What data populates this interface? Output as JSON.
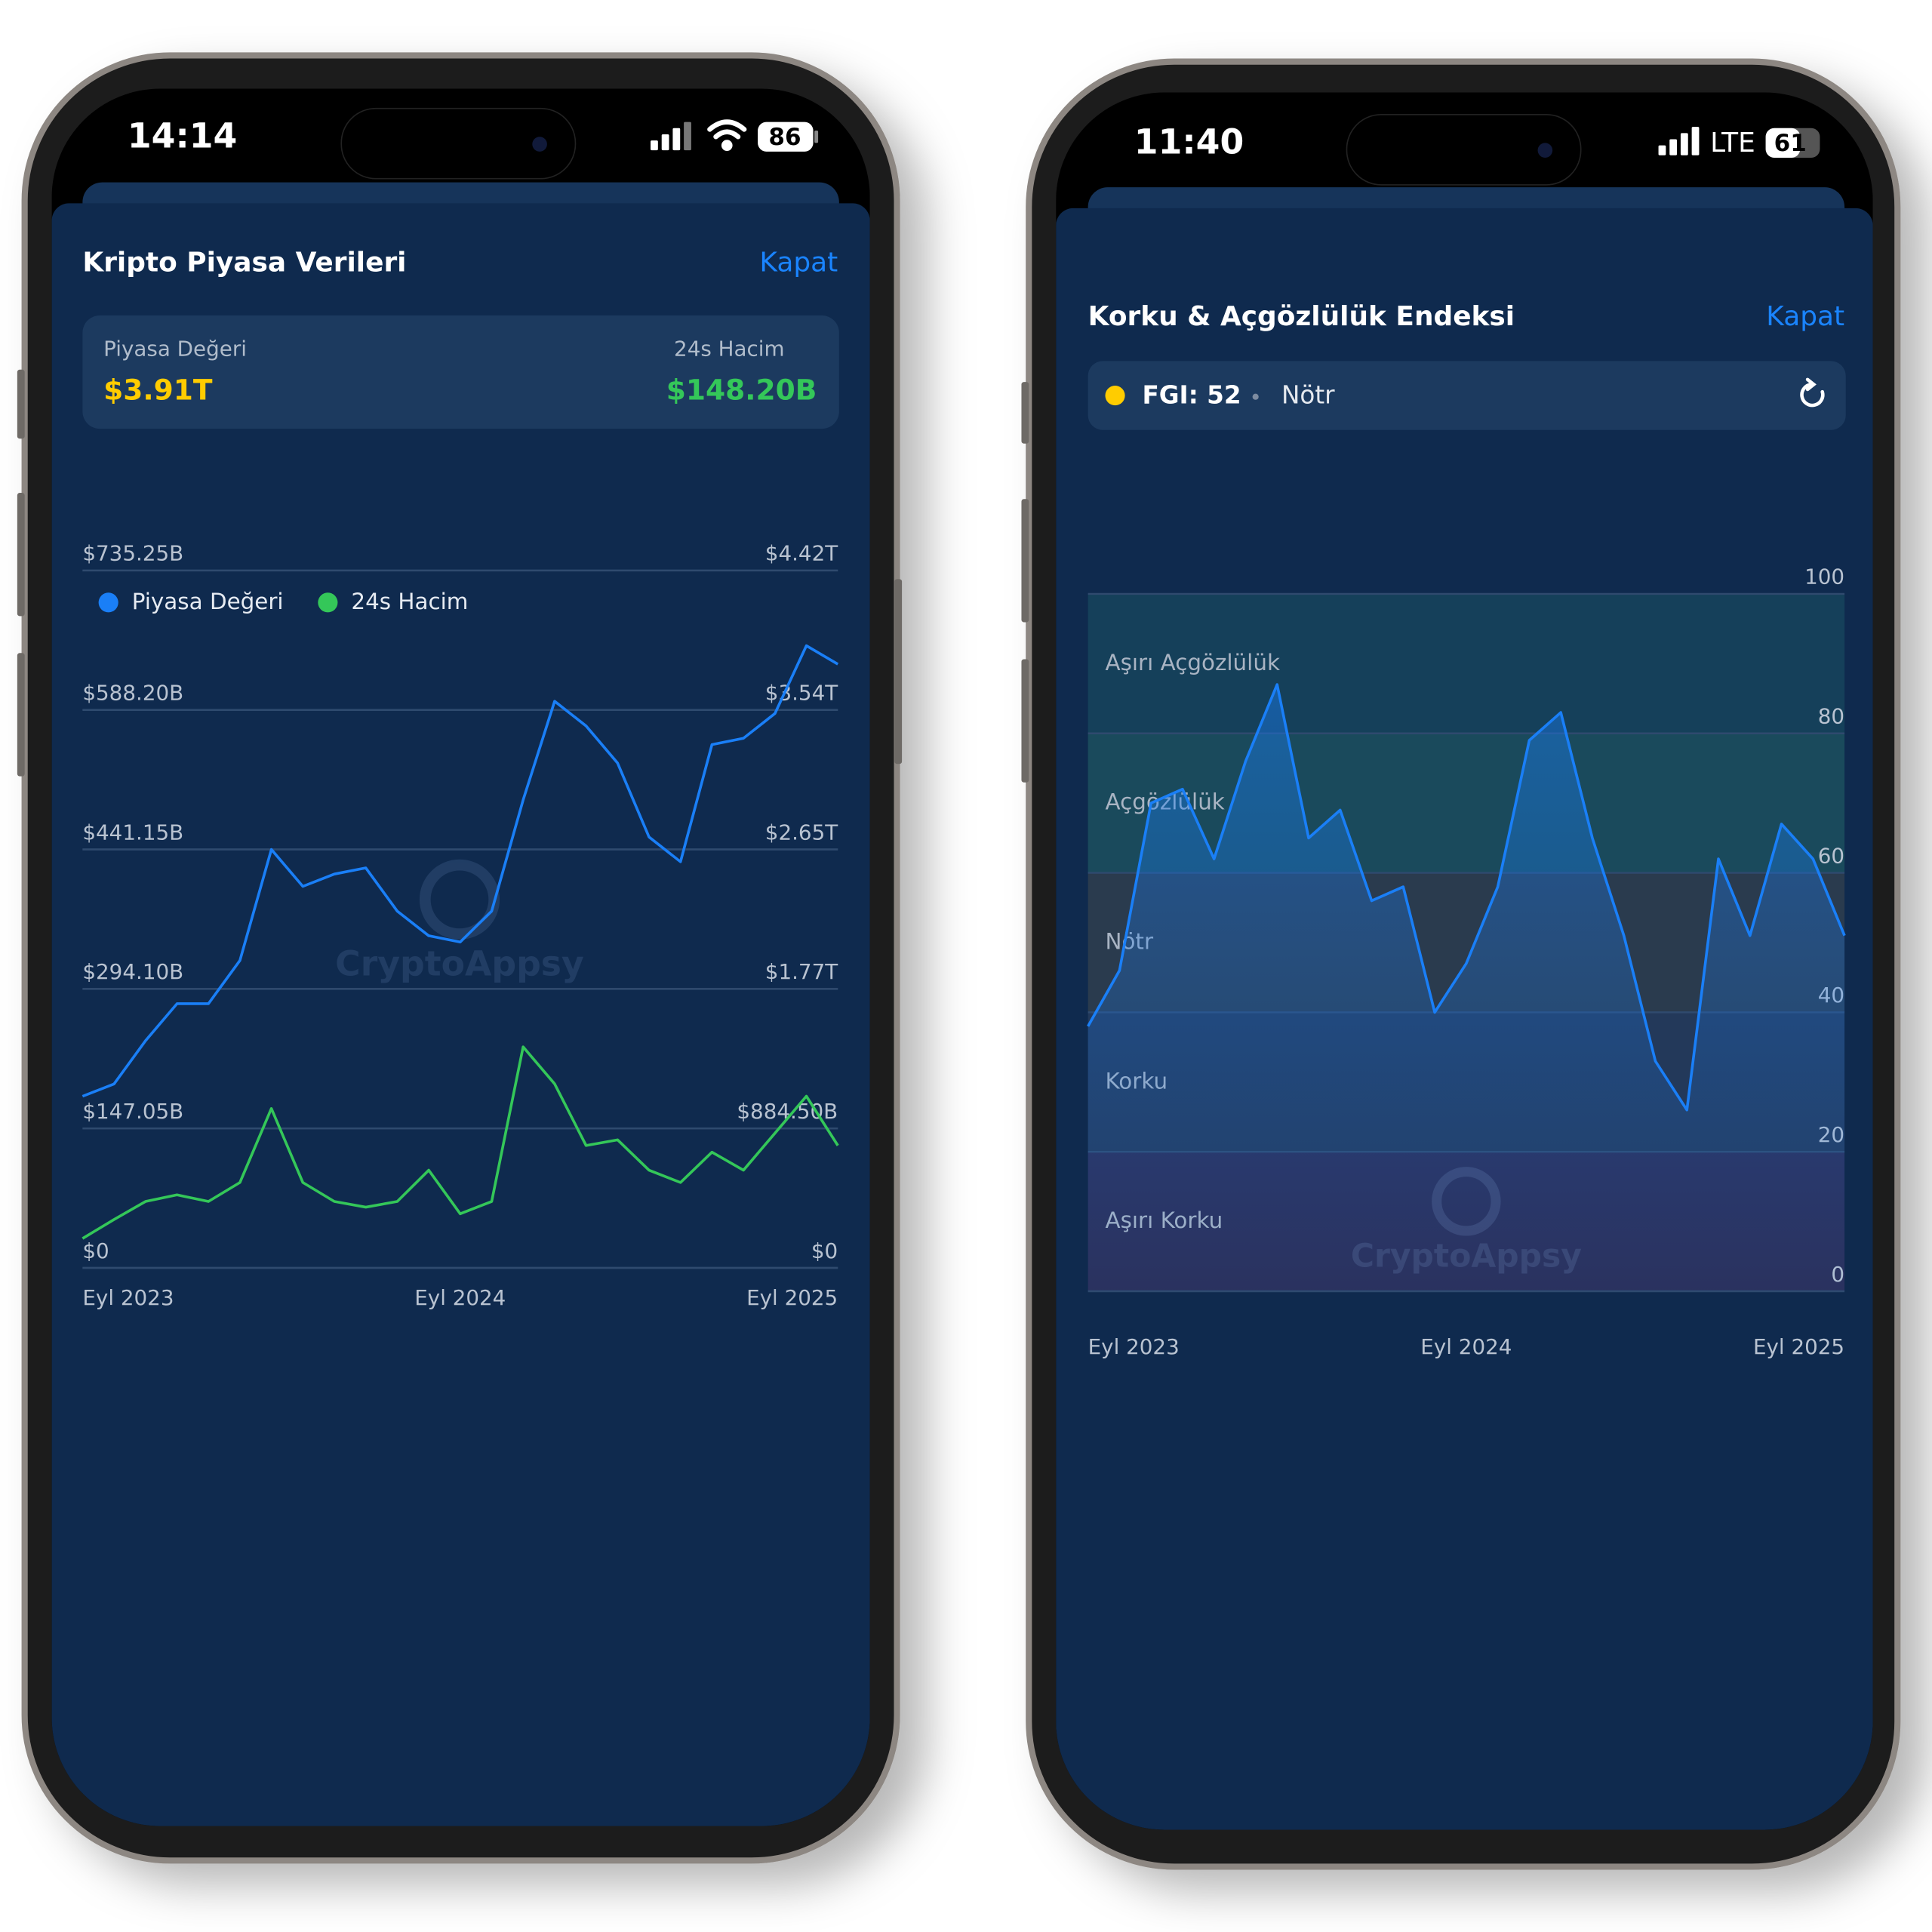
{
  "phones": [
    {
      "status": {
        "time": "14:14",
        "battery": "86"
      },
      "header": {
        "title": "Kripto Piyasa Verileri",
        "close": "Kapat"
      },
      "stats": [
        {
          "label": "Piyasa Değeri",
          "value": "$3.91T"
        },
        {
          "label": "24s Hacim",
          "value": "$148.20B"
        }
      ],
      "watermark": "CryptoAppsy"
    },
    {
      "status": {
        "time": "11:40",
        "network": "LTE",
        "battery": "61"
      },
      "header": {
        "title": "Korku & Açgözlülük Endeksi",
        "close": "Kapat"
      },
      "indicator": {
        "label": "FGI: 52",
        "state": "Nötr"
      },
      "watermark": "CryptoAppsy"
    }
  ],
  "chart_data": [
    {
      "type": "line",
      "x": [
        "2023-09",
        "2023-10",
        "2023-11",
        "2023-12",
        "2024-01",
        "2024-02",
        "2024-03",
        "2024-04",
        "2024-05",
        "2024-06",
        "2024-07",
        "2024-08",
        "2024-09",
        "2024-10",
        "2024-11",
        "2024-12",
        "2025-01",
        "2025-02",
        "2025-03",
        "2025-04",
        "2025-05",
        "2025-06",
        "2025-07",
        "2025-08",
        "2025-09"
      ],
      "xlim": [
        "2023-09",
        "2025-09"
      ],
      "xticks": [
        {
          "value": "2023-09",
          "label": "Eyl 2023"
        },
        {
          "value": "2024-09",
          "label": "Eyl 2024"
        },
        {
          "value": "2025-09",
          "label": "Eyl 2025"
        }
      ],
      "ylim": [
        0,
        735.25
      ],
      "yticks": [
        {
          "value": 0,
          "label": "$0"
        },
        {
          "value": 147.05,
          "label": "$147.05B"
        },
        {
          "value": 294.1,
          "label": "$294.10B"
        },
        {
          "value": 441.15,
          "label": "$441.15B"
        },
        {
          "value": 588.2,
          "label": "$588.20B"
        },
        {
          "value": 735.25,
          "label": "$735.25B"
        }
      ],
      "y2lim": [
        0,
        4422
      ],
      "y2ticks": [
        {
          "value": 0,
          "label": "$0"
        },
        {
          "value": 884.5,
          "label": "$884.50B"
        },
        {
          "value": 1769,
          "label": "$1.77T"
        },
        {
          "value": 2653.5,
          "label": "$2.65T"
        },
        {
          "value": 3538,
          "label": "$3.54T"
        },
        {
          "value": 4422,
          "label": "$4.42T"
        }
      ],
      "grid": true,
      "legend": "top-left",
      "series": [
        {
          "name": "Piyasa Değeri",
          "color": "#1a7ff7",
          "axis": "y2",
          "values": [
            1088,
            1166,
            1440,
            1675,
            1675,
            1949,
            2653,
            2419,
            2497,
            2536,
            2262,
            2106,
            2066,
            2262,
            2967,
            3593,
            3436,
            3201,
            2732,
            2575,
            3318,
            3358,
            3515,
            3945,
            3828
          ]
        },
        {
          "name": "24s Hacim",
          "color": "#34c759",
          "values": [
            31,
            51,
            70,
            77,
            70,
            90,
            168,
            90,
            70,
            64,
            70,
            103,
            57,
            70,
            233,
            194,
            129,
            135,
            103,
            90,
            122,
            103,
            142,
            181,
            129
          ]
        }
      ]
    },
    {
      "type": "line",
      "x": [
        "2023-09",
        "2023-10",
        "2023-11",
        "2023-12",
        "2024-01",
        "2024-02",
        "2024-03",
        "2024-04",
        "2024-05",
        "2024-06",
        "2024-07",
        "2024-08",
        "2024-09",
        "2024-10",
        "2024-11",
        "2024-12",
        "2025-01",
        "2025-02",
        "2025-03",
        "2025-04",
        "2025-05",
        "2025-06",
        "2025-07",
        "2025-08",
        "2025-09"
      ],
      "xlim": [
        "2023-09",
        "2025-09"
      ],
      "xticks": [
        {
          "value": "2023-09",
          "label": "Eyl 2023"
        },
        {
          "value": "2024-09",
          "label": "Eyl 2024"
        },
        {
          "value": "2025-09",
          "label": "Eyl 2025"
        }
      ],
      "ylim": [
        0,
        100
      ],
      "yticks": [
        0,
        20,
        40,
        60,
        80,
        100
      ],
      "grid": true,
      "area": true,
      "color": "#1a7ff7",
      "values": [
        38,
        46,
        70,
        72,
        62,
        76,
        87,
        65,
        69,
        56,
        58,
        40,
        47,
        58,
        79,
        83,
        65,
        51,
        33,
        26,
        62,
        51,
        67,
        62,
        51
      ],
      "zones": [
        {
          "label": "Aşırı Açgözlülük",
          "range": [
            80,
            100
          ],
          "color": "#15405a"
        },
        {
          "label": "Açgözlülük",
          "range": [
            60,
            80
          ],
          "color": "#1a4a5c"
        },
        {
          "label": "Nötr",
          "range": [
            40,
            60
          ],
          "color": "#2a3b4e"
        },
        {
          "label": "Korku",
          "range": [
            20,
            40
          ],
          "color": "#23395a"
        },
        {
          "label": "Aşırı Korku",
          "range": [
            0,
            20
          ],
          "color": "#2b2e57"
        }
      ]
    }
  ]
}
